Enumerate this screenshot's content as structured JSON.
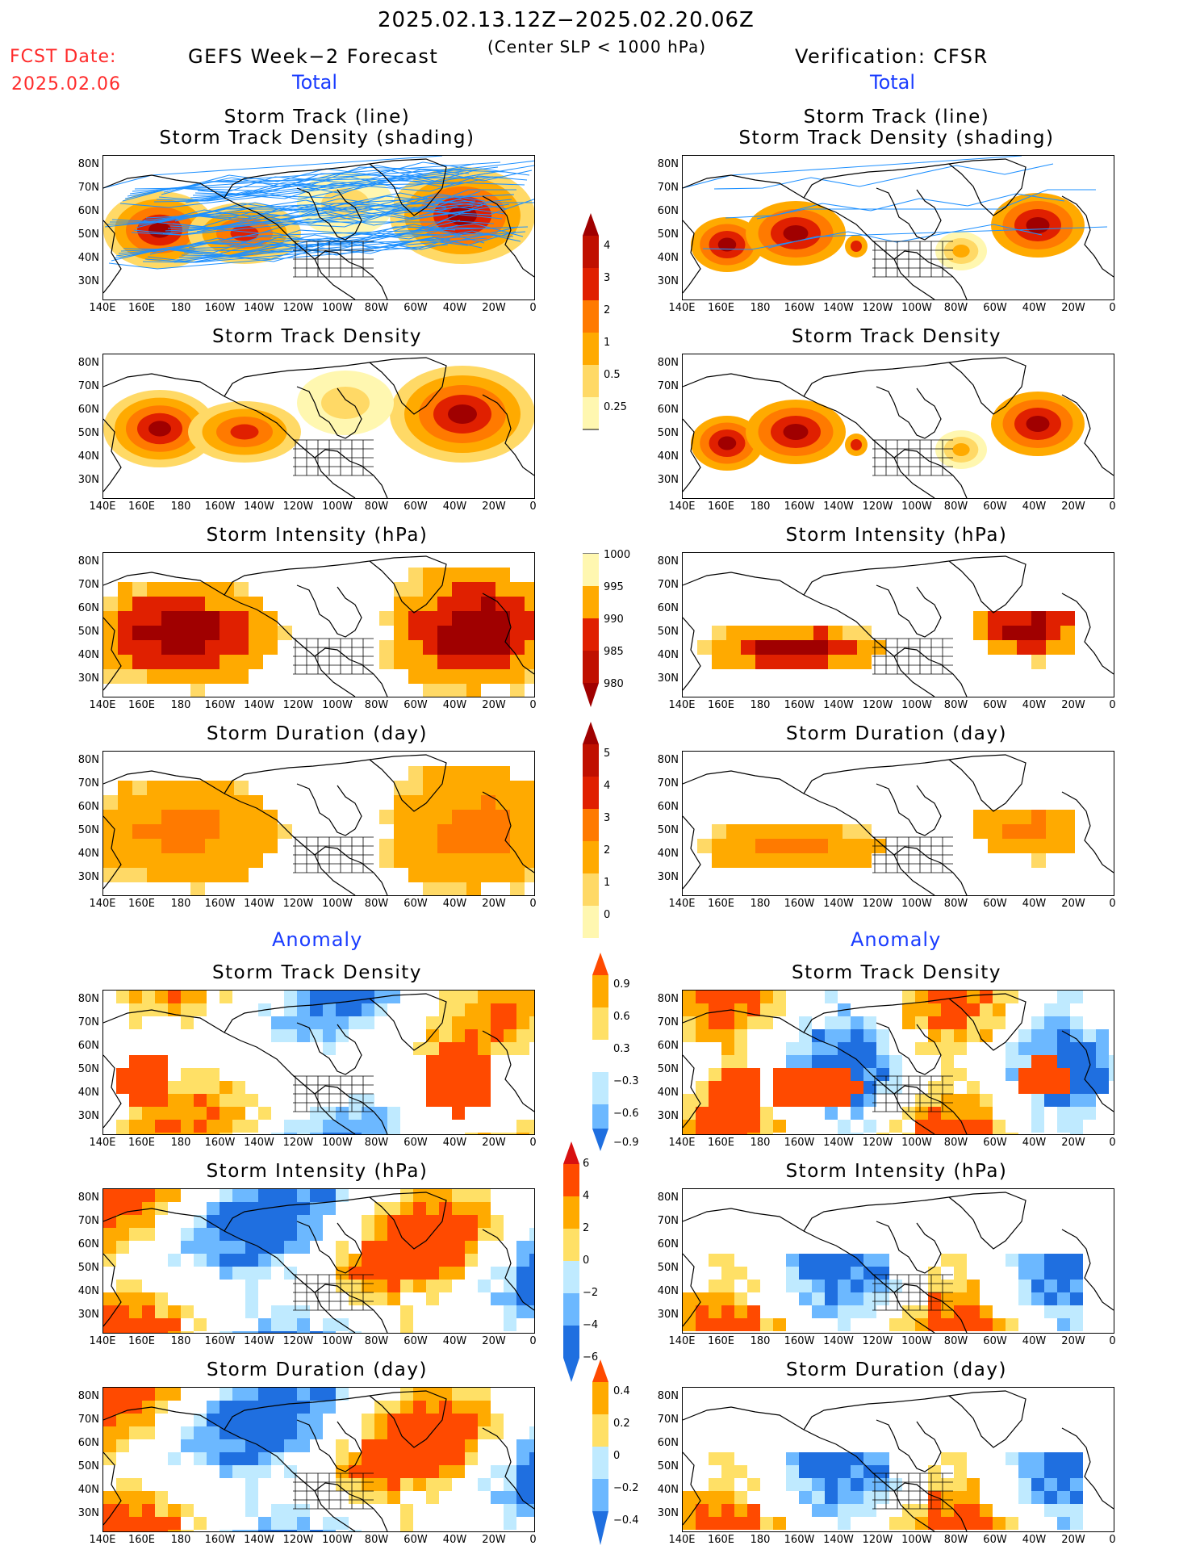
{
  "header": {
    "date_range": "2025.02.13.12Z−2025.02.20.06Z",
    "criterion": "(Center SLP < 1000 hPa)",
    "fcst_label": "FCST Date:",
    "fcst_date": "2025.02.06",
    "left_title": "GEFS Week−2 Forecast",
    "right_title": "Verification: CFSR"
  },
  "sections": {
    "total": "Total",
    "anomaly": "Anomaly"
  },
  "panel_titles": {
    "track_line": "Storm Track (line)",
    "track_density_shading": "Storm Track Density (shading)",
    "track_density": "Storm Track Density",
    "intensity": "Storm Intensity (hPa)",
    "duration": "Storm Duration (day)"
  },
  "axes": {
    "lat_labels": [
      "80N",
      "70N",
      "60N",
      "50N",
      "40N",
      "30N"
    ],
    "lon_labels": [
      "140E",
      "160E",
      "180",
      "160W",
      "140W",
      "120W",
      "100W",
      "80W",
      "60W",
      "40W",
      "20W",
      "0"
    ]
  },
  "colorbars": {
    "density": [
      "4",
      "3",
      "2",
      "1",
      "0.5",
      "0.25"
    ],
    "intensity": [
      "1000",
      "995",
      "990",
      "985",
      "980"
    ],
    "duration": [
      "5",
      "4",
      "3",
      "2",
      "1",
      "0"
    ],
    "density_anom": [
      "0.9",
      "0.6",
      "0.3",
      "−0.3",
      "−0.6",
      "−0.9"
    ],
    "intensity_anom": [
      "6",
      "4",
      "2",
      "0",
      "−2",
      "−4",
      "−6"
    ],
    "duration_anom": [
      "0.4",
      "0.2",
      "0",
      "−0.2",
      "−0.4"
    ]
  },
  "colors": {
    "warm": [
      "#fff7b0",
      "#ffd966",
      "#ffaa00",
      "#ff7a00",
      "#e02000",
      "#a00000"
    ],
    "anom_pos": [
      "#ffe066",
      "#ffaa00",
      "#ff4a00"
    ],
    "anom_neg": [
      "#bfeaff",
      "#6cb8ff",
      "#1f6fe0"
    ],
    "track_line": "#1e90ff"
  }
}
